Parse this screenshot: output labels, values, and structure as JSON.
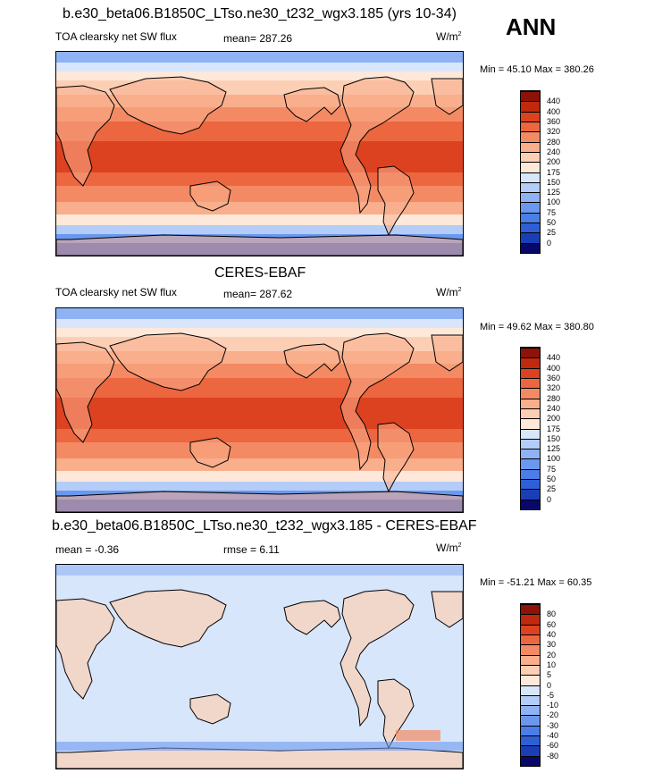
{
  "panels": [
    {
      "id": "model",
      "title": "b.e30_beta06.B1850C_LTso.ne30_t232_wgx3.185 (yrs 10-34)",
      "variable": "TOA clearsky net SW flux",
      "mean_text": "mean= 287.26",
      "rmse_text": "",
      "units": "W/m",
      "units_exp": "2",
      "minmax": "Min =  45.10 Max = 380.26",
      "levels": [
        "0",
        "25",
        "50",
        "75",
        "100",
        "125",
        "150",
        "175",
        "200",
        "240",
        "280",
        "320",
        "360",
        "400",
        "440"
      ],
      "colors": [
        "#08086b",
        "#1a3fb5",
        "#2e5fd6",
        "#4b7ee6",
        "#6b98ef",
        "#8fb2f5",
        "#b3cdf8",
        "#d7e6fb",
        "#fde8d9",
        "#fccfb5",
        "#f9ae8c",
        "#f48a63",
        "#ec6640",
        "#dd4220",
        "#c0290d",
        "#8e1208"
      ]
    },
    {
      "id": "obs",
      "title": "CERES-EBAF",
      "variable": "TOA clearsky net SW flux",
      "mean_text": "mean= 287.62",
      "rmse_text": "",
      "units": "W/m",
      "units_exp": "2",
      "minmax": "Min =  49.62 Max = 380.80",
      "levels": [
        "0",
        "25",
        "50",
        "75",
        "100",
        "125",
        "150",
        "175",
        "200",
        "240",
        "280",
        "320",
        "360",
        "400",
        "440"
      ],
      "colors": [
        "#08086b",
        "#1a3fb5",
        "#2e5fd6",
        "#4b7ee6",
        "#6b98ef",
        "#8fb2f5",
        "#b3cdf8",
        "#d7e6fb",
        "#fde8d9",
        "#fccfb5",
        "#f9ae8c",
        "#f48a63",
        "#ec6640",
        "#dd4220",
        "#c0290d",
        "#8e1208"
      ]
    },
    {
      "id": "diff",
      "title": "b.e30_beta06.B1850C_LTso.ne30_t232_wgx3.185 - CERES-EBAF",
      "variable": "",
      "mean_text": "mean =  -0.36",
      "rmse_text": "rmse =   6.11",
      "units": "W/m",
      "units_exp": "2",
      "minmax": "Min = -51.21 Max =  60.35",
      "levels": [
        "-80",
        "-60",
        "-40",
        "-30",
        "-20",
        "-10",
        "-5",
        "0",
        "5",
        "10",
        "20",
        "30",
        "40",
        "60",
        "80"
      ],
      "colors": [
        "#08086b",
        "#1a3fb5",
        "#2e5fd6",
        "#4b7ee6",
        "#6b98ef",
        "#8fb2f5",
        "#b3cdf8",
        "#d7e6fb",
        "#fde8d9",
        "#fccfb5",
        "#f9ae8c",
        "#f48a63",
        "#ec6640",
        "#dd4220",
        "#c0290d",
        "#8e1208"
      ]
    }
  ],
  "season": "ANN"
}
